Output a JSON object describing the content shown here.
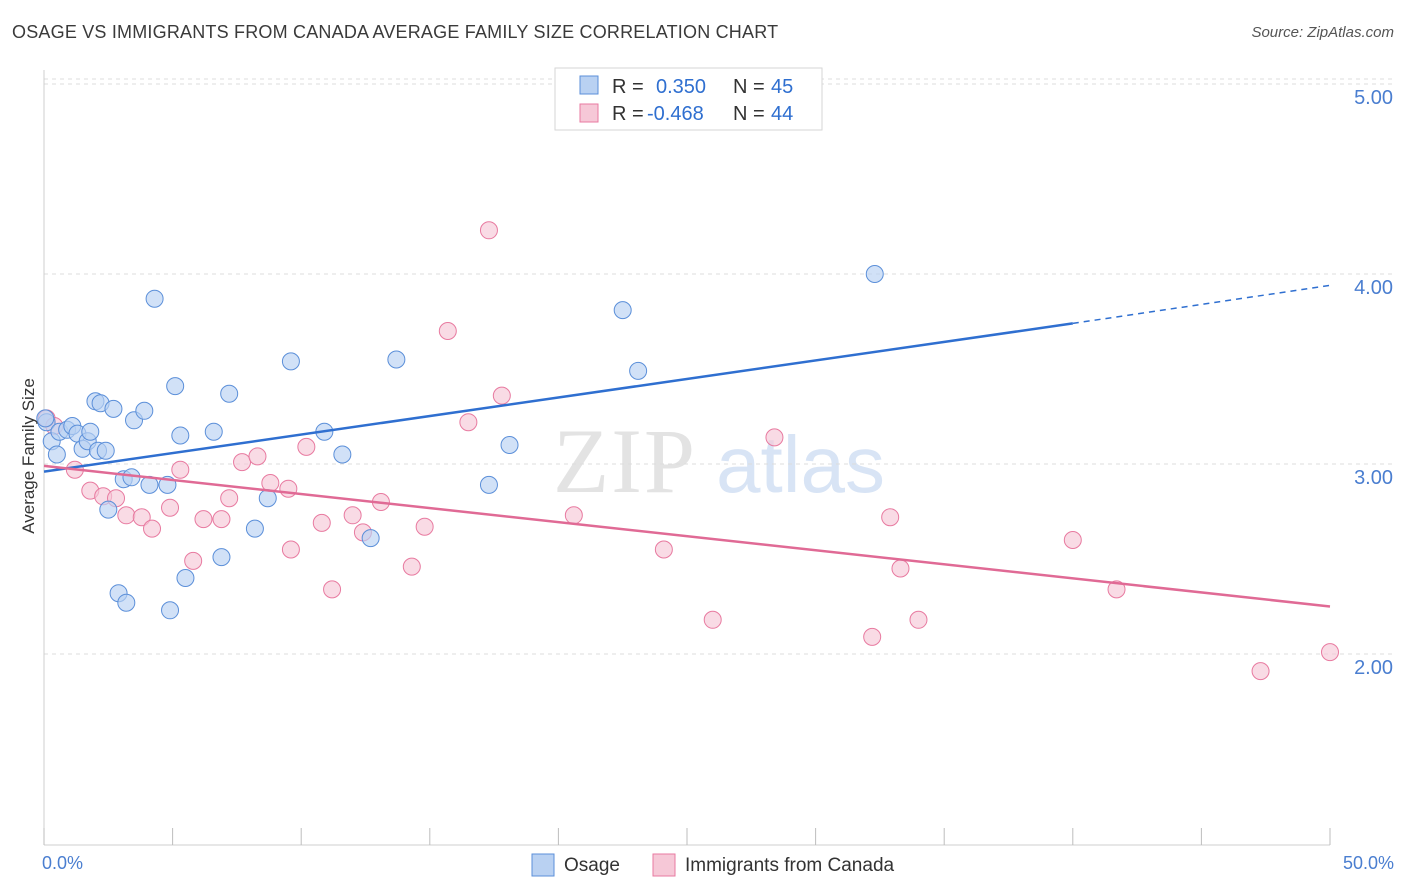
{
  "title": "OSAGE VS IMMIGRANTS FROM CANADA AVERAGE FAMILY SIZE CORRELATION CHART",
  "source": "Source: ZipAtlas.com",
  "watermark": {
    "zip": "ZIP",
    "atlas": "atlas"
  },
  "legend_top": {
    "rows": [
      {
        "r_label": "R =",
        "r_value": "0.350",
        "n_label": "N =",
        "n_value": "45"
      },
      {
        "r_label": "R =",
        "r_value": "-0.468",
        "n_label": "N =",
        "n_value": "44"
      }
    ]
  },
  "chart_data": {
    "type": "scatter",
    "title": "OSAGE VS IMMIGRANTS FROM CANADA AVERAGE FAMILY SIZE CORRELATION CHART",
    "xlabel": "",
    "ylabel": "Average Family Size",
    "xlim": [
      0,
      50
    ],
    "ylim": [
      1.25,
      5.1
    ],
    "x_tick_labels": [
      "0.0%",
      "50.0%"
    ],
    "y_ticks": [
      2.0,
      3.0,
      4.0,
      5.0
    ],
    "y_tick_labels": [
      "2.00",
      "3.00",
      "4.00",
      "5.00"
    ],
    "grid": true,
    "legend_position": "bottom",
    "colors": {
      "osage": "#5b8fd9",
      "canada": "#e87aa0",
      "osage_fill": "#b9d1f2",
      "canada_fill": "#f6c8d7"
    },
    "series": [
      {
        "name": "Osage",
        "r": 0.35,
        "n": 45,
        "trend": {
          "x0": 0,
          "y0": 2.96,
          "x1": 40,
          "y1": 3.74,
          "dash_to_x": 50,
          "dash_to_y": 3.94
        },
        "points": [
          [
            0.1,
            3.22
          ],
          [
            0.3,
            3.12
          ],
          [
            0.5,
            3.05
          ],
          [
            0.6,
            3.17
          ],
          [
            0.9,
            3.18
          ],
          [
            1.1,
            3.2
          ],
          [
            1.3,
            3.16
          ],
          [
            1.5,
            3.08
          ],
          [
            1.7,
            3.12
          ],
          [
            1.8,
            3.17
          ],
          [
            2.0,
            3.33
          ],
          [
            2.1,
            3.07
          ],
          [
            2.2,
            3.32
          ],
          [
            2.4,
            3.07
          ],
          [
            2.5,
            2.76
          ],
          [
            2.7,
            3.29
          ],
          [
            2.9,
            2.32
          ],
          [
            3.1,
            2.92
          ],
          [
            3.2,
            2.27
          ],
          [
            3.4,
            2.93
          ],
          [
            3.5,
            3.23
          ],
          [
            3.9,
            3.28
          ],
          [
            4.1,
            2.89
          ],
          [
            4.3,
            3.87
          ],
          [
            4.8,
            2.89
          ],
          [
            4.9,
            2.23
          ],
          [
            5.1,
            3.41
          ],
          [
            5.3,
            3.15
          ],
          [
            5.5,
            2.4
          ],
          [
            6.6,
            3.17
          ],
          [
            6.9,
            2.51
          ],
          [
            7.2,
            3.37
          ],
          [
            8.2,
            2.66
          ],
          [
            8.7,
            2.82
          ],
          [
            9.6,
            3.54
          ],
          [
            10.9,
            3.17
          ],
          [
            11.6,
            3.05
          ],
          [
            12.7,
            2.61
          ],
          [
            13.7,
            3.55
          ],
          [
            17.3,
            2.89
          ],
          [
            18.1,
            3.1
          ],
          [
            22.5,
            3.81
          ],
          [
            23.1,
            3.49
          ],
          [
            32.3,
            4.0
          ],
          [
            0.05,
            3.24
          ]
        ]
      },
      {
        "name": "Immigrants from Canada",
        "r": -0.468,
        "n": 44,
        "trend": {
          "x0": 0,
          "y0": 2.99,
          "x1": 50,
          "y1": 2.25
        },
        "points": [
          [
            0.1,
            3.24
          ],
          [
            1.2,
            2.97
          ],
          [
            1.8,
            2.86
          ],
          [
            2.3,
            2.83
          ],
          [
            2.8,
            2.82
          ],
          [
            3.2,
            2.73
          ],
          [
            3.8,
            2.72
          ],
          [
            4.2,
            2.66
          ],
          [
            4.9,
            2.77
          ],
          [
            5.3,
            2.97
          ],
          [
            5.8,
            2.49
          ],
          [
            6.2,
            2.71
          ],
          [
            6.9,
            2.71
          ],
          [
            7.2,
            2.82
          ],
          [
            7.7,
            3.01
          ],
          [
            8.3,
            3.04
          ],
          [
            8.8,
            2.9
          ],
          [
            9.5,
            2.87
          ],
          [
            9.6,
            2.55
          ],
          [
            10.2,
            3.09
          ],
          [
            10.8,
            2.69
          ],
          [
            11.2,
            2.34
          ],
          [
            12.0,
            2.73
          ],
          [
            12.4,
            2.64
          ],
          [
            13.1,
            2.8
          ],
          [
            14.3,
            2.46
          ],
          [
            14.8,
            2.67
          ],
          [
            15.7,
            3.7
          ],
          [
            16.5,
            3.22
          ],
          [
            17.3,
            4.23
          ],
          [
            17.8,
            3.36
          ],
          [
            20.6,
            2.73
          ],
          [
            24.1,
            2.55
          ],
          [
            26.0,
            2.18
          ],
          [
            28.4,
            3.14
          ],
          [
            32.2,
            2.09
          ],
          [
            32.9,
            2.72
          ],
          [
            33.3,
            2.45
          ],
          [
            34.0,
            2.18
          ],
          [
            40.0,
            2.6
          ],
          [
            41.7,
            2.34
          ],
          [
            47.3,
            1.91
          ],
          [
            50.0,
            2.01
          ],
          [
            0.4,
            3.2
          ]
        ]
      }
    ]
  },
  "legend_bottom": {
    "items": [
      "Osage",
      "Immigrants from Canada"
    ]
  }
}
